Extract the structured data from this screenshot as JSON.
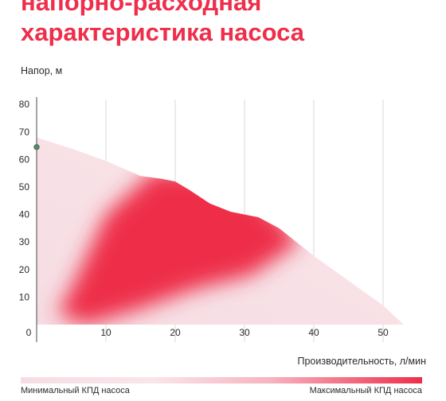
{
  "title": {
    "line1": "напорно-расходная",
    "line2": "характеристика насоса"
  },
  "chart_data": {
    "type": "area",
    "ylabel": "Напор, м",
    "xlabel": "Производительность, л/мин",
    "xlim": [
      0,
      55
    ],
    "ylim": [
      0,
      80
    ],
    "x_ticks": [
      0,
      10,
      20,
      30,
      40,
      50
    ],
    "y_ticks": [
      10,
      20,
      30,
      40,
      50,
      60,
      70,
      80
    ],
    "grid": "vertical",
    "curve": {
      "x": [
        0,
        5,
        10,
        15,
        18,
        20,
        22,
        25,
        28,
        30,
        32,
        35,
        40,
        45,
        50,
        53
      ],
      "y": [
        68,
        64,
        59.5,
        54,
        53,
        52,
        49,
        44,
        41,
        40,
        39,
        35,
        25,
        16,
        7,
        0
      ]
    },
    "marker": {
      "x": 0,
      "y": 64.5
    },
    "legend": {
      "min_label": "Минимальный КПД насоса",
      "max_label": "Максимальный КПД насоса",
      "min_color": "#f6dde3",
      "max_color": "#ee2e4a"
    }
  }
}
